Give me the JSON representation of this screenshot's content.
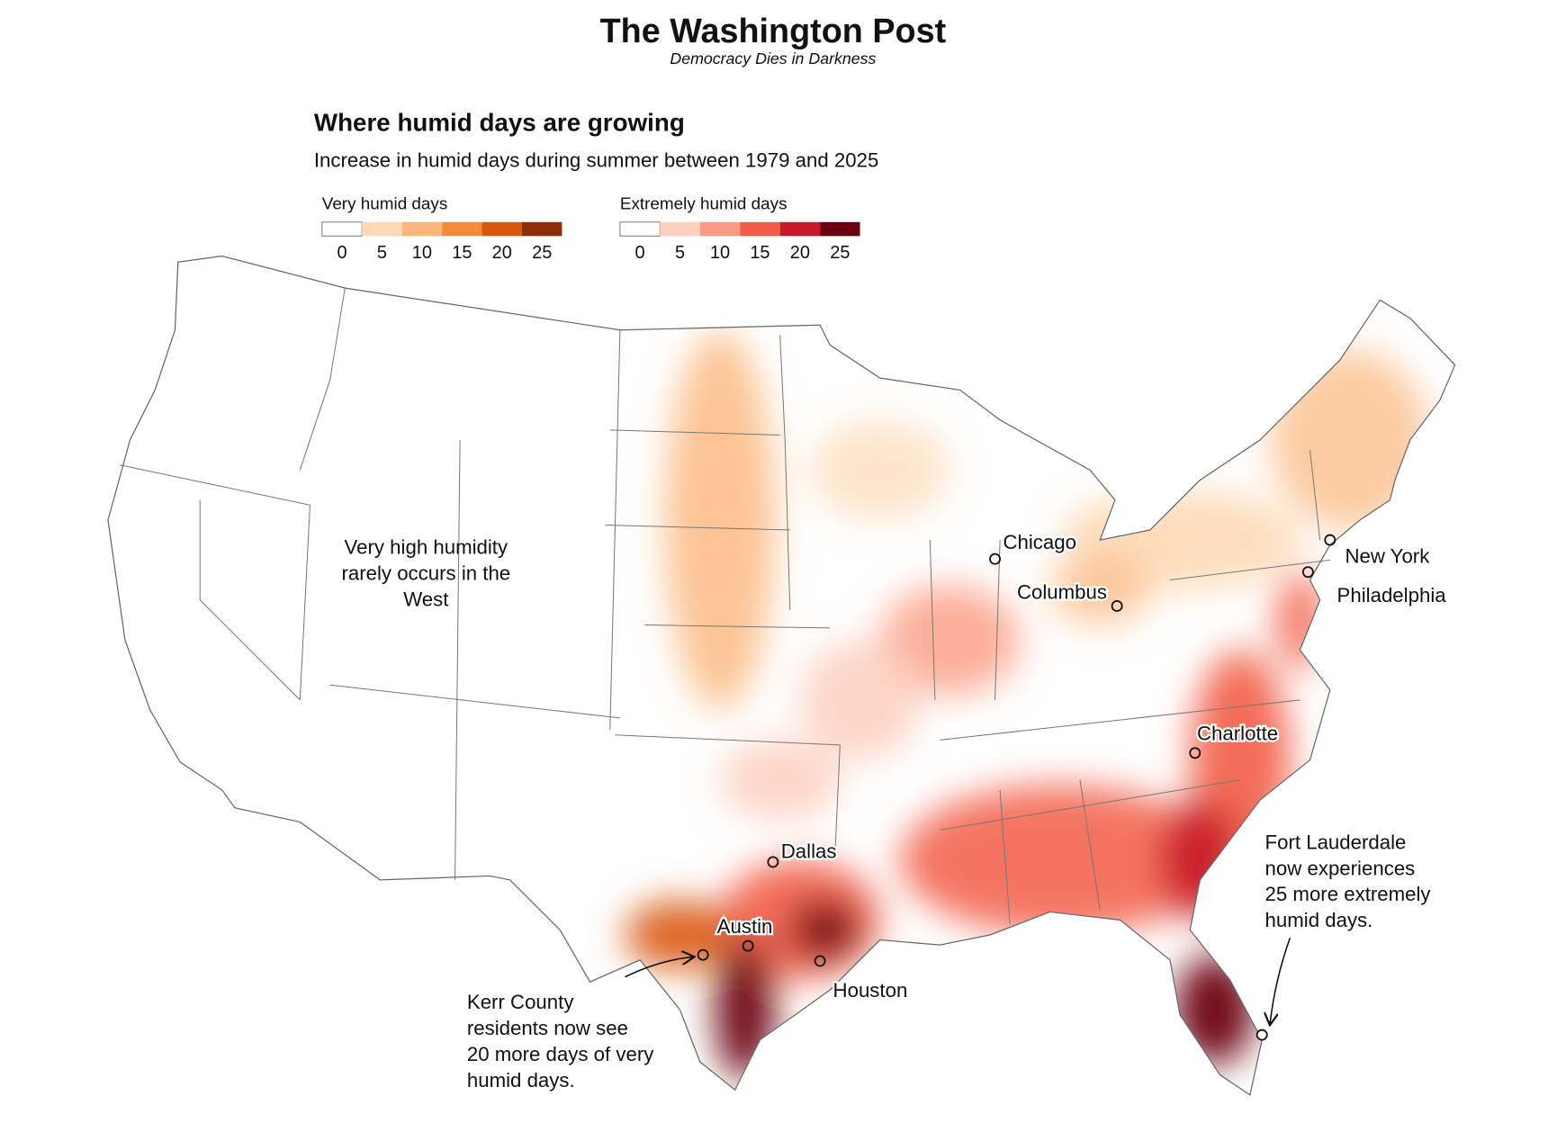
{
  "header": {
    "logo": "The Washington Post",
    "tagline": "Democracy Dies in Darkness"
  },
  "title": "Where humid days are growing",
  "subtitle": "Increase in humid days during summer between 1979 and 2025",
  "legends": [
    {
      "title": "Very humid days",
      "ticks": [
        0,
        5,
        10,
        15,
        20,
        25
      ],
      "colors": [
        "#ffffff",
        "#fdd9b5",
        "#fbb57a",
        "#f58b3a",
        "#d9570f",
        "#8f2d06"
      ]
    },
    {
      "title": "Extremely humid days",
      "ticks": [
        0,
        5,
        10,
        15,
        20,
        25
      ],
      "colors": [
        "#ffffff",
        "#fdd0c2",
        "#fb9a80",
        "#f25c45",
        "#c8192a",
        "#6b0010"
      ]
    }
  ],
  "cities": [
    {
      "name": "Chicago"
    },
    {
      "name": "Columbus"
    },
    {
      "name": "New York"
    },
    {
      "name": "Philadelphia"
    },
    {
      "name": "Charlotte"
    },
    {
      "name": "Dallas"
    },
    {
      "name": "Austin"
    },
    {
      "name": "Houston"
    }
  ],
  "annotations": [
    {
      "lines": [
        "Very high humidity",
        "rarely occurs in the",
        "West"
      ]
    },
    {
      "lines": [
        "Kerr County",
        "residents now see",
        "20 more days of very",
        "humid days."
      ]
    },
    {
      "lines": [
        "Fort Lauderdale",
        "now experiences",
        "25 more extremely",
        "humid days."
      ]
    }
  ]
}
